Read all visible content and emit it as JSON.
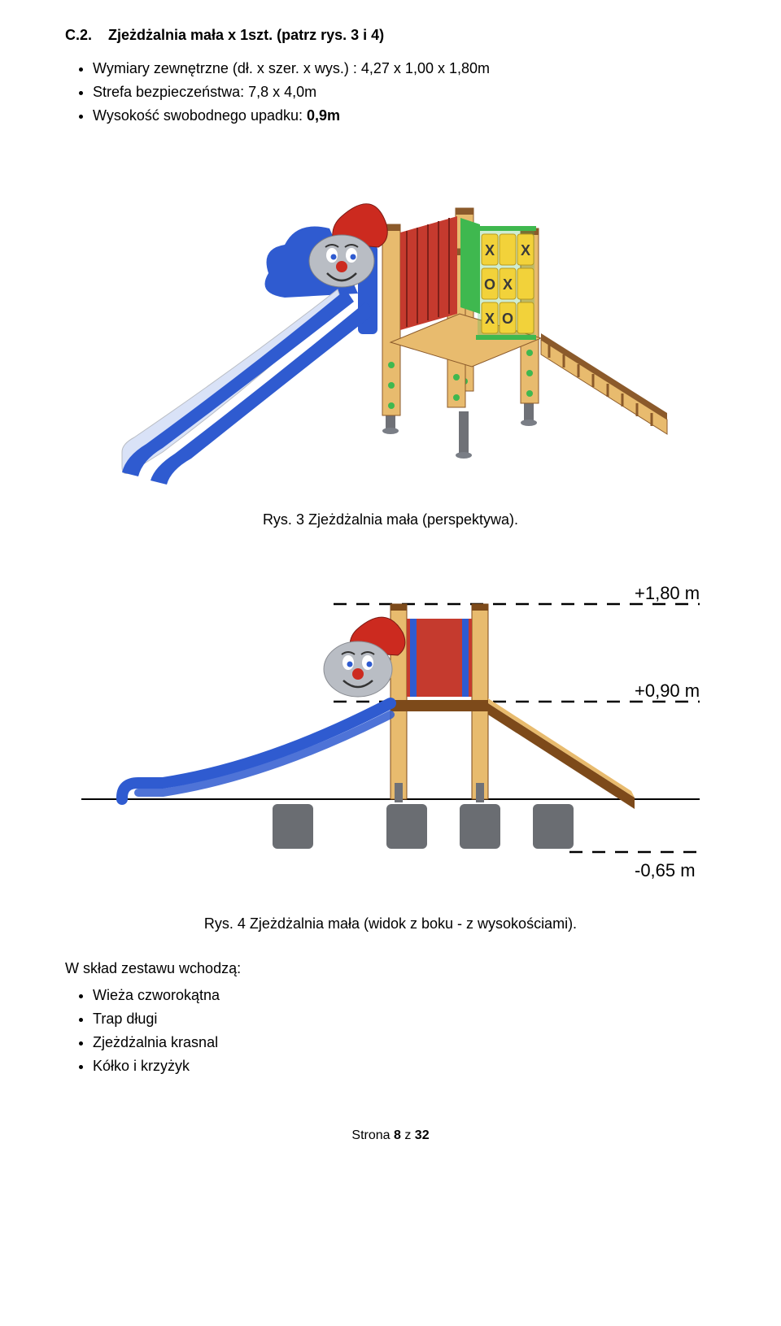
{
  "heading": {
    "num": "C.2.",
    "title": "Zjeżdżalnia mała x 1szt. (patrz rys. 3 i 4)"
  },
  "specs": {
    "dim_label": "Wymiary zewnętrzne (dł. x szer. x wys.) : 4,27 x 1,00 x 1,80m",
    "safety": "Strefa bezpieczeństwa: 7,8 x 4,0m",
    "fall_prefix": "Wysokość swobodnego upadku: ",
    "fall_value": "0,9m"
  },
  "fig3": {
    "caption": "Rys. 3 Zjeżdżalnia mała (perspektywa).",
    "colors": {
      "wood_light": "#e8bb6e",
      "wood_dark": "#8b5a2b",
      "blue": "#2f5bd0",
      "blue_light": "#d9e2f7",
      "green": "#3fb84f",
      "red": "#c53a2e",
      "red_hat": "#cc2a1f",
      "yellow": "#f2d23a",
      "grey": "#b9bdc4",
      "grey_dark": "#7a7e86",
      "steel": "#6f7177"
    },
    "tictactoe": [
      [
        "X",
        "",
        "X"
      ],
      [
        "O",
        "X",
        ""
      ],
      [
        "X",
        "O",
        ""
      ]
    ]
  },
  "fig4": {
    "caption": "Rys. 4 Zjeżdżalnia mała (widok z boku - z wysokościami).",
    "labels": {
      "top": "+1,80 m",
      "mid": "+0,90 m",
      "bottom": "-0,65 m"
    },
    "colors": {
      "wood_light": "#e8bb6e",
      "wood_dark": "#7d4a1a",
      "blue": "#2f5bd0",
      "red": "#c53a2e",
      "red_hat": "#cc2a1f",
      "grey": "#b9bdc4",
      "grey_dark": "#5f6066",
      "foundation": "#6a6d72",
      "line": "#000000"
    }
  },
  "composition": {
    "intro": "W skład zestawu wchodzą:",
    "items": [
      "Wieża czworokątna",
      "Trap długi",
      "Zjeżdżalnia krasnal",
      "Kółko i krzyżyk"
    ]
  },
  "footer": {
    "prefix": "Strona ",
    "page": "8",
    "mid": " z ",
    "total": "32"
  }
}
